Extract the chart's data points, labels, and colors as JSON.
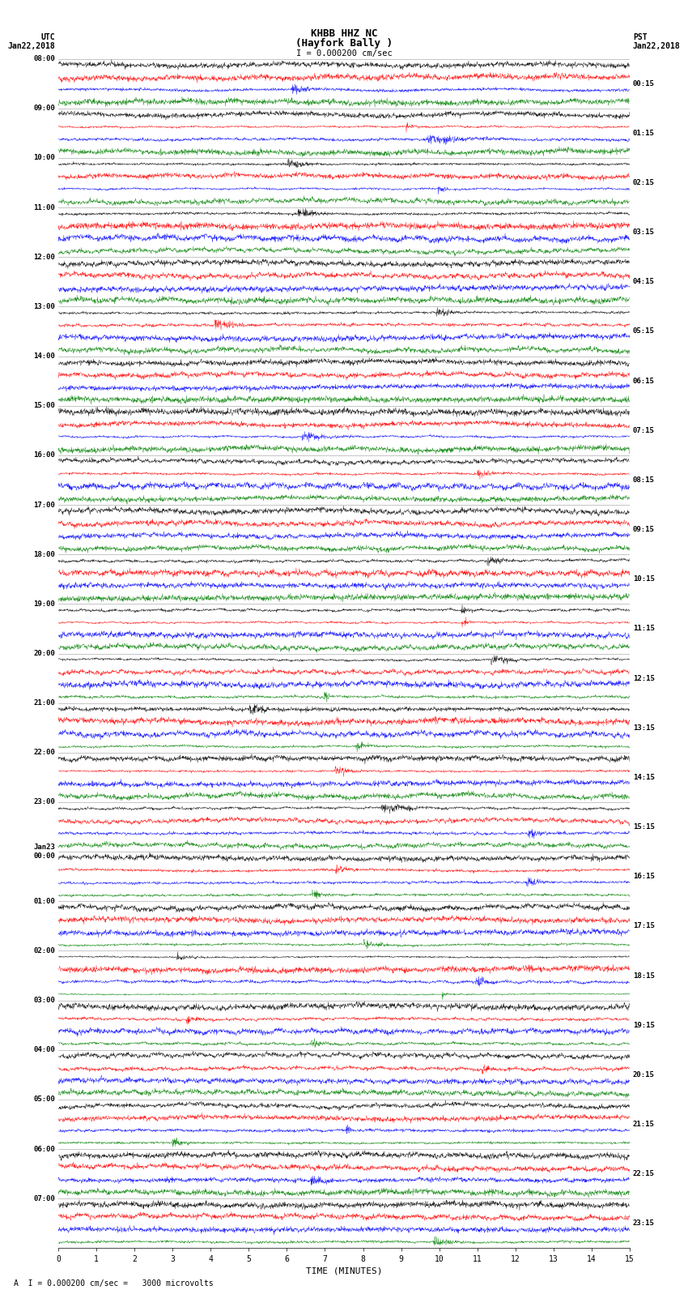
{
  "title_line1": "KHBB HHZ NC",
  "title_line2": "(Hayfork Bally )",
  "scale_label": "I = 0.000200 cm/sec",
  "footer_label": "A  I = 0.000200 cm/sec =   3000 microvolts",
  "utc_label": "UTC\nJan22,2018",
  "pst_label": "PST\nJan22,2018",
  "xlabel": "TIME (MINUTES)",
  "left_times": [
    "08:00",
    "09:00",
    "10:00",
    "11:00",
    "12:00",
    "13:00",
    "14:00",
    "15:00",
    "16:00",
    "17:00",
    "18:00",
    "19:00",
    "20:00",
    "21:00",
    "22:00",
    "23:00",
    "Jan23\n00:00",
    "01:00",
    "02:00",
    "03:00",
    "04:00",
    "05:00",
    "06:00",
    "07:00"
  ],
  "right_times": [
    "00:15",
    "01:15",
    "02:15",
    "03:15",
    "04:15",
    "05:15",
    "06:15",
    "07:15",
    "08:15",
    "09:15",
    "10:15",
    "11:15",
    "12:15",
    "13:15",
    "14:15",
    "15:15",
    "16:15",
    "17:15",
    "18:15",
    "19:15",
    "20:15",
    "21:15",
    "22:15",
    "23:15"
  ],
  "n_rows": 24,
  "traces_per_row": 4,
  "trace_color_list": [
    "#000000",
    "#ff0000",
    "#0000ff",
    "#008000"
  ],
  "bg_color": "white",
  "minutes": 15,
  "figsize": [
    8.5,
    16.13
  ],
  "dpi": 100
}
